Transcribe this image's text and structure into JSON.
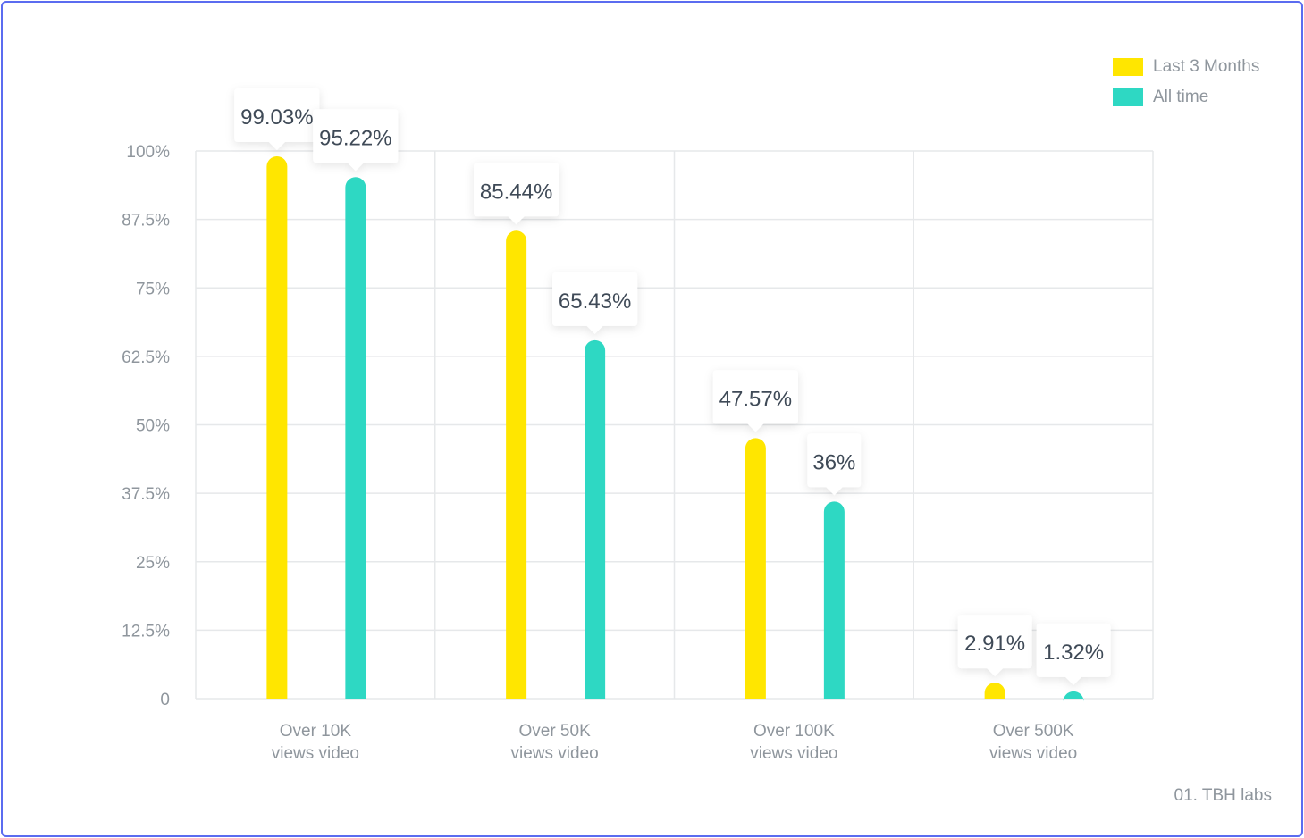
{
  "chart_data": {
    "type": "bar",
    "categories": [
      "Over 10K views video",
      "Over 50K views video",
      "Over 100K views video",
      "Over 500K views video"
    ],
    "category_lines": [
      [
        "Over 10K",
        "views video"
      ],
      [
        "Over 50K",
        "views video"
      ],
      [
        "Over 100K",
        "views video"
      ],
      [
        "Over 500K",
        "views video"
      ]
    ],
    "series": [
      {
        "name": "Last 3 Months",
        "color": "#ffe600",
        "values": [
          99.03,
          85.44,
          47.57,
          2.91
        ],
        "labels": [
          "99.03%",
          "85.44%",
          "47.57%",
          "2.91%"
        ]
      },
      {
        "name": "All time",
        "color": "#2ed8c3",
        "values": [
          95.22,
          65.43,
          36,
          1.32
        ],
        "labels": [
          "95.22%",
          "65.43%",
          "36%",
          "1.32%"
        ]
      }
    ],
    "yticks": [
      0,
      12.5,
      25,
      37.5,
      50,
      62.5,
      75,
      87.5,
      100
    ],
    "ytick_labels": [
      "0",
      "12.5%",
      "25%",
      "37.5%",
      "50%",
      "62.5%",
      "75%",
      "87.5%",
      "100%"
    ],
    "ylim": [
      0,
      100
    ],
    "grid": true,
    "legend_position": "top-right",
    "xlabel": "",
    "ylabel": ""
  },
  "legend": {
    "items": [
      {
        "label": "Last 3 Months",
        "color": "#ffe600"
      },
      {
        "label": "All time",
        "color": "#2ed8c3"
      }
    ]
  },
  "source": "01. TBH labs"
}
